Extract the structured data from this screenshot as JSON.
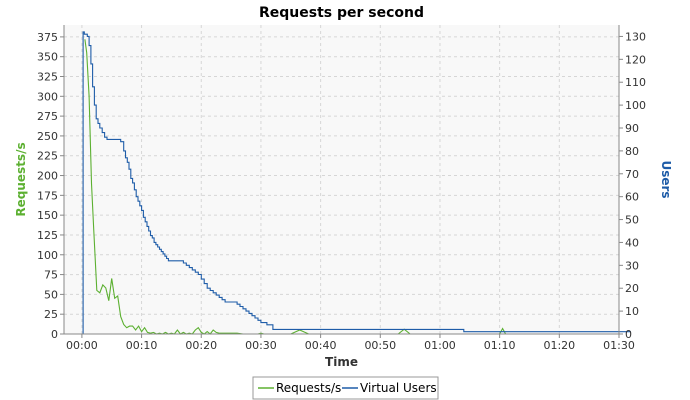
{
  "chart_data": {
    "type": "line",
    "title": "Requests per second",
    "xlabel": "Time",
    "ylabel_left": "Requests/s",
    "ylabel_right": "Users",
    "x_unit": "seconds",
    "xlim": [
      -3,
      90
    ],
    "x_ticks": [
      0,
      10,
      20,
      30,
      40,
      50,
      60,
      70,
      80,
      90
    ],
    "x_tick_labels": [
      "00:00",
      "00:10",
      "00:20",
      "00:30",
      "00:40",
      "00:50",
      "01:00",
      "01:10",
      "01:20",
      "01:30"
    ],
    "ylim_left": [
      0,
      390
    ],
    "y_ticks_left": [
      0,
      25,
      50,
      75,
      100,
      125,
      150,
      175,
      200,
      225,
      250,
      275,
      300,
      325,
      350,
      375
    ],
    "ylim_right": [
      0,
      135
    ],
    "y_ticks_right": [
      0,
      10,
      20,
      30,
      40,
      50,
      60,
      70,
      80,
      90,
      100,
      110,
      120,
      130
    ],
    "grid": true,
    "legend_position": "bottom-center",
    "series": [
      {
        "name": "Requests/s",
        "axis": "left",
        "color": "#5cb031",
        "step": false,
        "x": [
          0.5,
          0.8,
          1.2,
          1.6,
          2.0,
          2.5,
          3.0,
          3.5,
          4.0,
          4.5,
          5.0,
          5.5,
          6.0,
          6.5,
          7.0,
          7.5,
          8.0,
          8.5,
          9.0,
          9.5,
          10.0,
          10.5,
          11.0,
          11.5,
          12.0,
          12.5,
          13.0,
          13.5,
          14.0,
          14.5,
          15.0,
          15.5,
          16.0,
          16.5,
          17.0,
          17.5,
          18.0,
          18.5,
          19.0,
          19.5,
          20.0,
          20.5,
          21.0,
          21.5,
          22.0,
          22.5,
          23.0,
          24.0,
          25.0,
          26.0,
          27.0,
          29.5,
          30.0,
          30.5,
          35.0,
          36.5,
          38.0,
          53.0,
          54.0,
          55.0,
          70.0,
          70.5,
          71.0
        ],
        "y": [
          372,
          355,
          300,
          190,
          130,
          55,
          52,
          62,
          58,
          42,
          70,
          45,
          48,
          22,
          12,
          8,
          10,
          10,
          5,
          10,
          3,
          8,
          2,
          1,
          2,
          0,
          1,
          0,
          2,
          0,
          1,
          0,
          5,
          0,
          2,
          0,
          1,
          0,
          5,
          8,
          2,
          0,
          3,
          0,
          5,
          2,
          1,
          1,
          1,
          1,
          0,
          0,
          1,
          0,
          0,
          5,
          0,
          0,
          6,
          0,
          0,
          7,
          0
        ]
      },
      {
        "name": "Virtual Users",
        "axis": "right",
        "color": "#1e5ca8",
        "step": true,
        "x": [
          0.0,
          0.2,
          0.4,
          0.9,
          1.2,
          1.5,
          1.8,
          2.1,
          2.4,
          2.7,
          3.0,
          3.4,
          3.8,
          4.2,
          6.5,
          7.0,
          7.3,
          7.6,
          7.9,
          8.2,
          8.5,
          8.8,
          9.1,
          9.4,
          9.7,
          10.0,
          10.3,
          10.6,
          10.9,
          11.2,
          11.5,
          11.8,
          12.1,
          12.4,
          12.7,
          13.0,
          13.3,
          13.6,
          13.9,
          14.2,
          14.5,
          17.0,
          17.5,
          18.0,
          18.5,
          19.0,
          19.5,
          20.0,
          20.5,
          21.0,
          21.5,
          22.0,
          22.5,
          23.0,
          23.5,
          24.0,
          26.0,
          26.5,
          27.0,
          27.5,
          28.0,
          28.5,
          29.0,
          29.5,
          30.0,
          31.0,
          32.0,
          64.0,
          92.0
        ],
        "y": [
          0,
          132,
          131,
          130,
          126,
          118,
          108,
          100,
          94,
          92,
          90,
          88,
          86,
          85,
          84,
          80,
          77,
          75,
          72,
          68,
          66,
          63,
          60,
          58,
          56,
          54,
          51,
          49,
          47,
          45,
          43,
          42,
          40,
          39,
          38,
          37,
          36,
          35,
          34,
          33,
          32,
          31,
          30,
          29,
          28,
          27,
          26,
          24,
          22,
          20,
          19,
          18,
          17,
          16,
          15,
          14,
          13,
          12,
          11,
          10,
          9,
          8,
          7,
          6,
          5,
          4,
          2,
          1,
          1
        ]
      }
    ]
  }
}
